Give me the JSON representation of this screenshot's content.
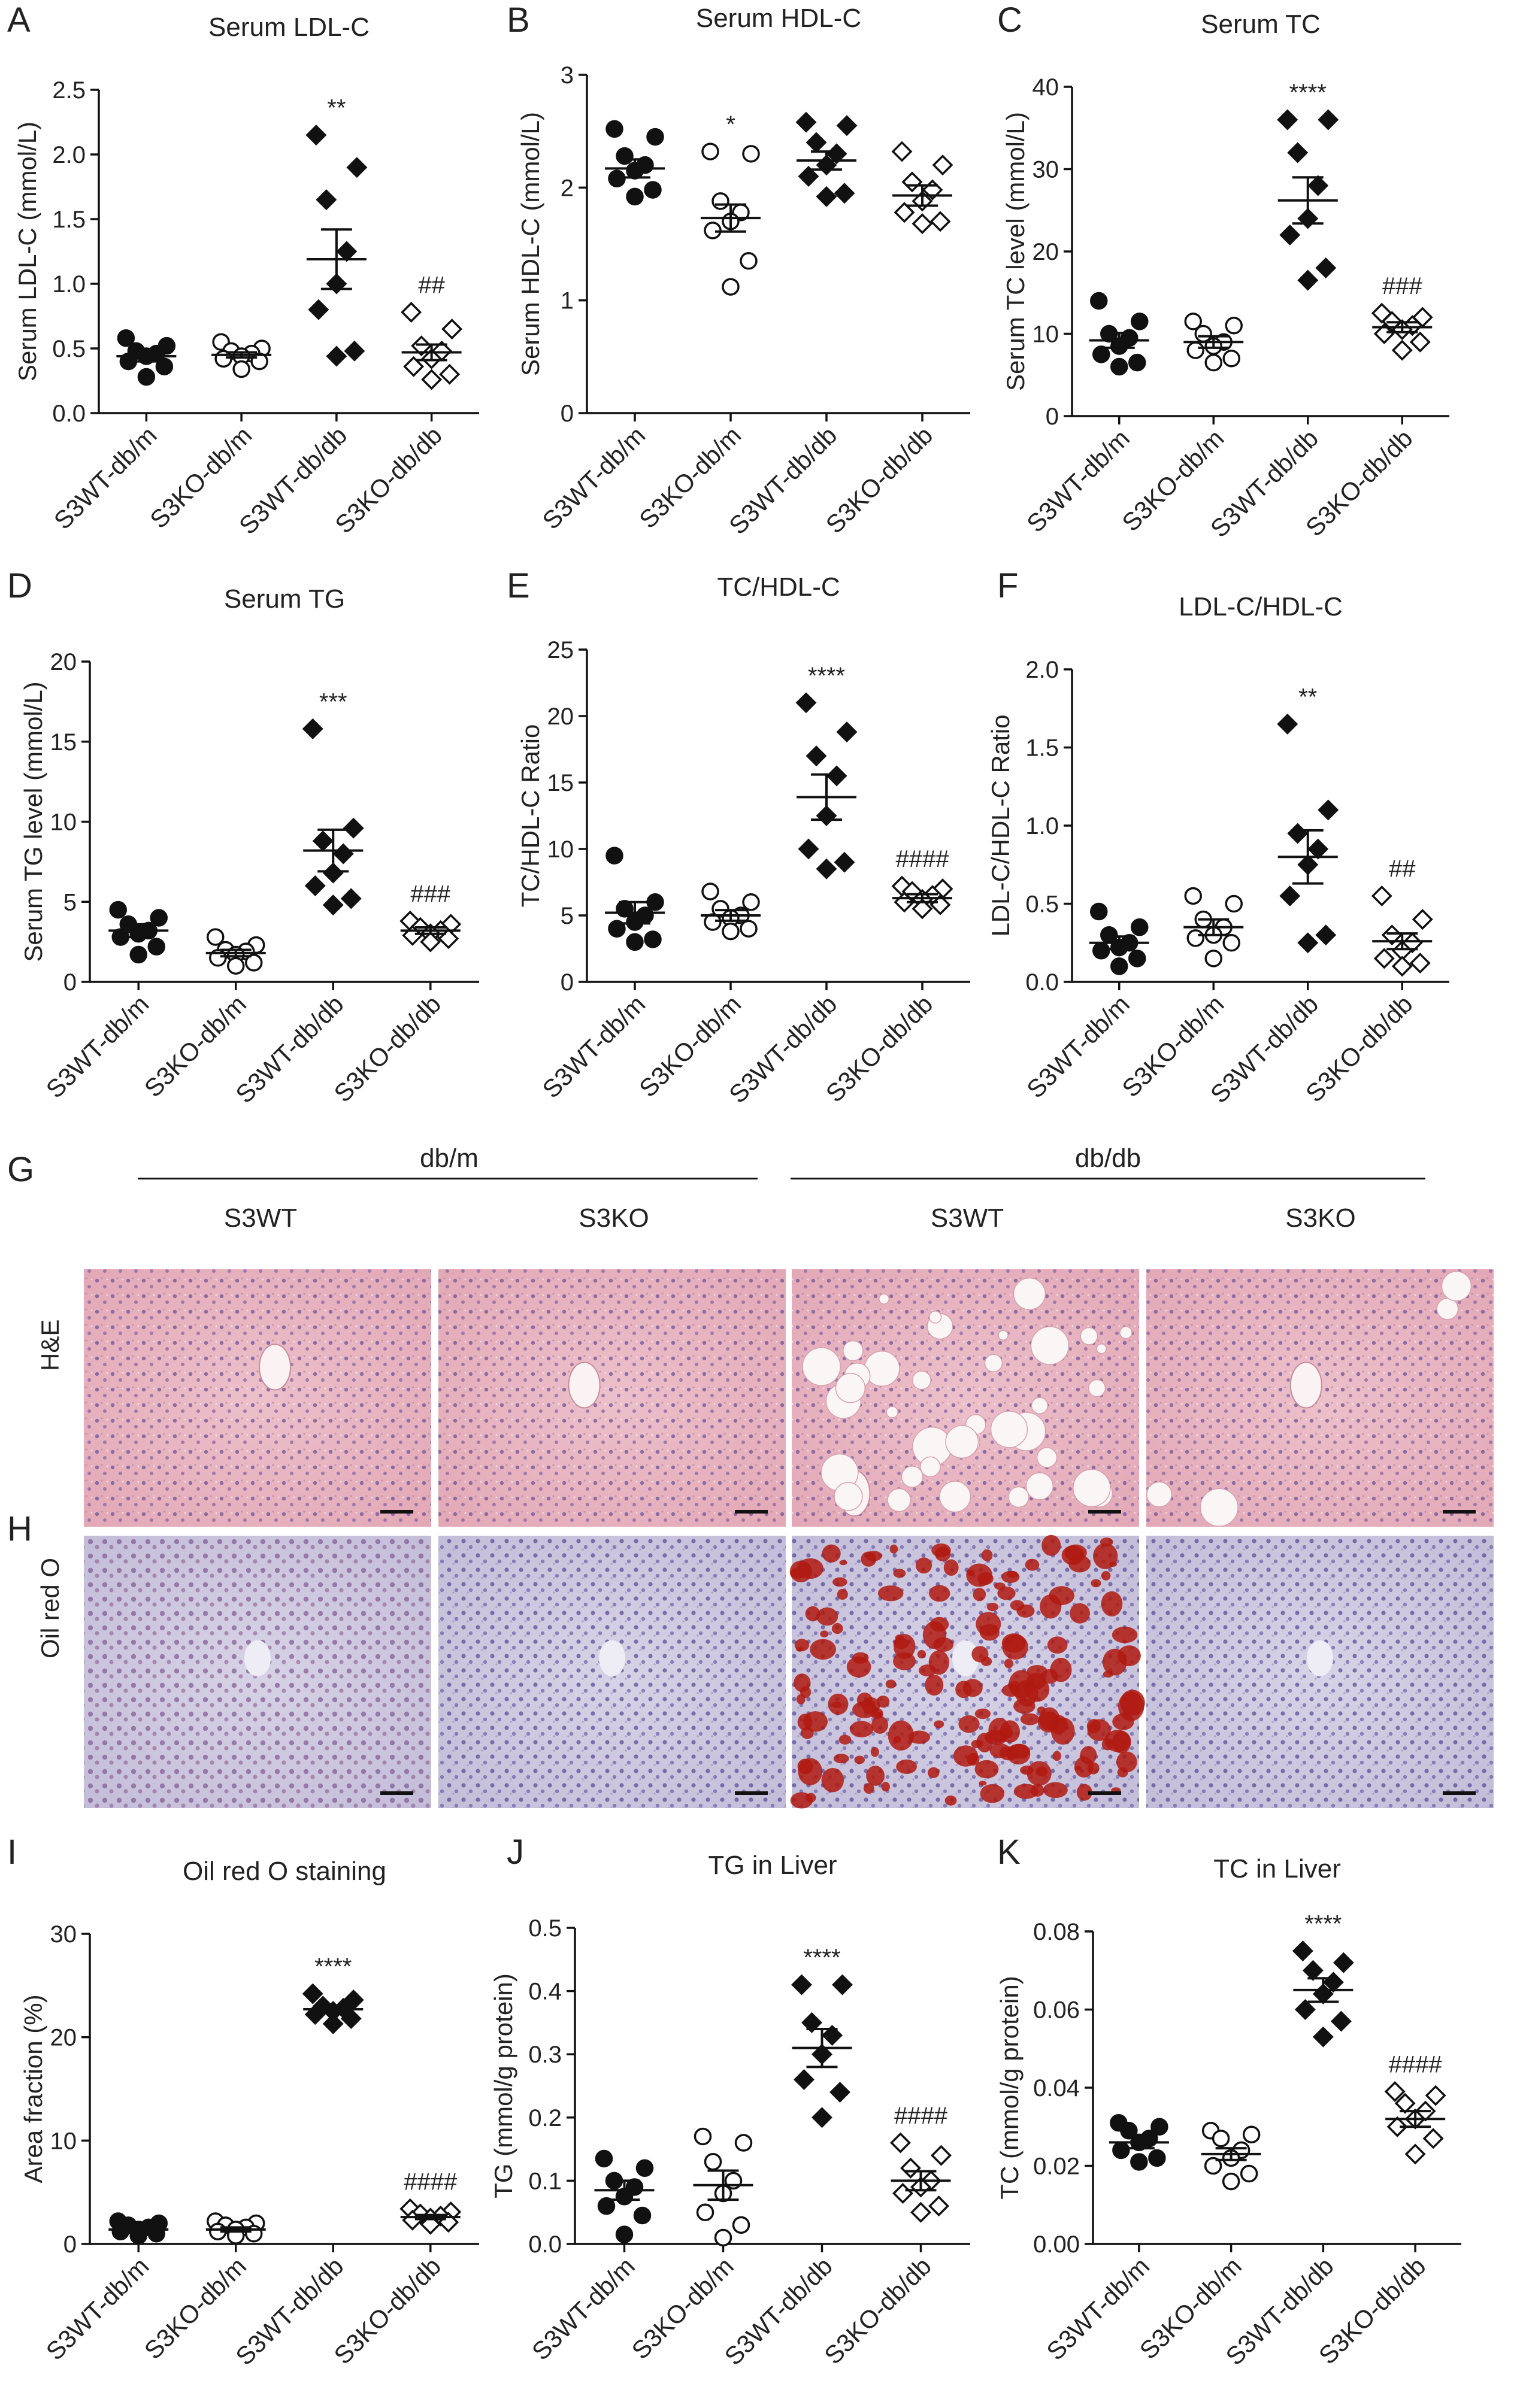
{
  "figure": {
    "panel_letters": [
      "A",
      "B",
      "C",
      "D",
      "E",
      "F",
      "G",
      "H",
      "I",
      "J",
      "K"
    ],
    "histology": {
      "group_headers": [
        "db/m",
        "db/db"
      ],
      "subheaders": [
        "S3WT",
        "S3KO",
        "S3WT",
        "S3KO"
      ],
      "row_labels": [
        "H&E",
        "Oil red O"
      ]
    }
  },
  "colors": {
    "ink": "#111111",
    "he_stain": "#e7b1bd",
    "he_nuclei": "#7a5f9e",
    "oro_background": "#cfcbe0",
    "oro_lipid": "#b01a10"
  },
  "chart_data": [
    {
      "id": "A",
      "type": "scatter",
      "title": "Serum  LDL-C",
      "ylabel": "Serum LDL-C  (mmol/L)",
      "ylim": [
        0,
        2.5
      ],
      "yticks": [
        0.0,
        0.5,
        1.0,
        1.5,
        2.0,
        2.5
      ],
      "tick_decimals": 1,
      "categories": [
        "S3WT-db/m",
        "S3KO-db/m",
        "S3WT-db/db",
        "S3KO-db/db"
      ],
      "series": [
        {
          "category": "S3WT-db/m",
          "marker": "filled-circle",
          "mean": 0.44,
          "sem": 0.04,
          "values": [
            0.58,
            0.52,
            0.48,
            0.46,
            0.44,
            0.4,
            0.36,
            0.28
          ],
          "annotation": ""
        },
        {
          "category": "S3KO-db/m",
          "marker": "open-circle",
          "mean": 0.45,
          "sem": 0.02,
          "values": [
            0.55,
            0.5,
            0.48,
            0.46,
            0.44,
            0.42,
            0.4,
            0.34
          ],
          "annotation": ""
        },
        {
          "category": "S3WT-db/db",
          "marker": "filled-diamond",
          "mean": 1.19,
          "sem": 0.23,
          "values": [
            2.15,
            1.9,
            1.65,
            1.25,
            1.0,
            0.8,
            0.48,
            0.44
          ],
          "annotation": "**"
        },
        {
          "category": "S3KO-db/db",
          "marker": "open-diamond",
          "mean": 0.47,
          "sem": 0.06,
          "values": [
            0.78,
            0.65,
            0.52,
            0.48,
            0.42,
            0.36,
            0.3,
            0.26
          ],
          "annotation": "##"
        }
      ]
    },
    {
      "id": "B",
      "type": "scatter",
      "title": "Serum HDL-C",
      "ylabel": "Serum HDL-C  (mmol/L)",
      "ylim": [
        0,
        3
      ],
      "yticks": [
        0,
        1,
        2,
        3
      ],
      "tick_decimals": 0,
      "categories": [
        "S3WT-db/m",
        "S3KO-db/m",
        "S3WT-db/db",
        "S3KO-db/db"
      ],
      "series": [
        {
          "category": "S3WT-db/m",
          "marker": "filled-circle",
          "mean": 2.17,
          "sem": 0.08,
          "values": [
            2.52,
            2.45,
            2.28,
            2.2,
            2.15,
            2.08,
            1.98,
            1.92
          ],
          "annotation": ""
        },
        {
          "category": "S3KO-db/m",
          "marker": "open-circle",
          "mean": 1.73,
          "sem": 0.12,
          "values": [
            2.32,
            2.3,
            1.88,
            1.78,
            1.7,
            1.62,
            1.35,
            1.12
          ],
          "annotation": "*"
        },
        {
          "category": "S3WT-db/db",
          "marker": "filled-diamond",
          "mean": 2.24,
          "sem": 0.08,
          "values": [
            2.58,
            2.55,
            2.4,
            2.3,
            2.2,
            2.1,
            1.95,
            1.92
          ],
          "annotation": ""
        },
        {
          "category": "S3KO-db/db",
          "marker": "open-diamond",
          "mean": 1.93,
          "sem": 0.09,
          "values": [
            2.32,
            2.2,
            2.05,
            1.98,
            1.88,
            1.78,
            1.7,
            1.68
          ],
          "annotation": ""
        }
      ]
    },
    {
      "id": "C",
      "type": "scatter",
      "title": "Serum TC",
      "ylabel": "Serum TC level (mmol/L)",
      "ylim": [
        0,
        40
      ],
      "yticks": [
        0,
        10,
        20,
        30,
        40
      ],
      "tick_decimals": 0,
      "categories": [
        "S3WT-db/m",
        "S3KO-db/m",
        "S3WT-db/db",
        "S3KO-db/db"
      ],
      "series": [
        {
          "category": "S3WT-db/m",
          "marker": "filled-circle",
          "mean": 9.2,
          "sem": 0.9,
          "values": [
            14.0,
            11.5,
            10.0,
            9.5,
            8.5,
            7.5,
            6.5,
            6.0
          ],
          "annotation": ""
        },
        {
          "category": "S3KO-db/m",
          "marker": "open-circle",
          "mean": 9.0,
          "sem": 0.7,
          "values": [
            11.5,
            11.0,
            10.0,
            9.0,
            8.5,
            8.0,
            7.0,
            6.5
          ],
          "annotation": ""
        },
        {
          "category": "S3WT-db/db",
          "marker": "filled-diamond",
          "mean": 26.2,
          "sem": 2.8,
          "values": [
            36.0,
            36.0,
            32.0,
            28.0,
            24.0,
            22.0,
            18.0,
            16.5
          ],
          "annotation": "****"
        },
        {
          "category": "S3KO-db/db",
          "marker": "open-diamond",
          "mean": 10.8,
          "sem": 0.6,
          "values": [
            12.5,
            12.0,
            11.5,
            11.0,
            10.5,
            10.0,
            9.0,
            8.0
          ],
          "annotation": "###"
        }
      ]
    },
    {
      "id": "D",
      "type": "scatter",
      "title": "Serum TG",
      "ylabel": "Serum TG level (mmol/L)",
      "ylim": [
        0,
        20
      ],
      "yticks": [
        0,
        5,
        10,
        15,
        20
      ],
      "tick_decimals": 0,
      "categories": [
        "S3WT-db/m",
        "S3KO-db/m",
        "S3WT-db/db",
        "S3KO-db/db"
      ],
      "series": [
        {
          "category": "S3WT-db/m",
          "marker": "filled-circle",
          "mean": 3.2,
          "sem": 0.4,
          "values": [
            4.5,
            4.0,
            3.6,
            3.2,
            3.0,
            2.8,
            2.2,
            1.7
          ],
          "annotation": ""
        },
        {
          "category": "S3KO-db/m",
          "marker": "open-circle",
          "mean": 1.8,
          "sem": 0.2,
          "values": [
            2.8,
            2.3,
            2.0,
            1.9,
            1.7,
            1.5,
            1.2,
            1.0
          ],
          "annotation": ""
        },
        {
          "category": "S3WT-db/db",
          "marker": "filled-diamond",
          "mean": 8.2,
          "sem": 1.3,
          "values": [
            15.8,
            9.6,
            8.8,
            8.0,
            6.8,
            6.0,
            5.2,
            4.8
          ],
          "annotation": "***"
        },
        {
          "category": "S3KO-db/db",
          "marker": "open-diamond",
          "mean": 3.2,
          "sem": 0.2,
          "values": [
            3.8,
            3.6,
            3.4,
            3.2,
            3.0,
            2.9,
            2.7,
            2.5
          ],
          "annotation": "###"
        }
      ]
    },
    {
      "id": "E",
      "type": "scatter",
      "title": "TC/HDL-C",
      "ylabel": "TC/HDL-C Ratio",
      "ylim": [
        0,
        25
      ],
      "yticks": [
        0,
        5,
        10,
        15,
        20,
        25
      ],
      "tick_decimals": 0,
      "categories": [
        "S3WT-db/m",
        "S3KO-db/m",
        "S3WT-db/db",
        "S3KO-db/db"
      ],
      "series": [
        {
          "category": "S3WT-db/m",
          "marker": "filled-circle",
          "mean": 5.2,
          "sem": 0.8,
          "values": [
            9.5,
            6.0,
            5.5,
            5.0,
            4.5,
            4.0,
            3.2,
            3.0
          ],
          "annotation": ""
        },
        {
          "category": "S3KO-db/m",
          "marker": "open-circle",
          "mean": 5.0,
          "sem": 0.4,
          "values": [
            6.8,
            6.0,
            5.5,
            5.0,
            4.8,
            4.5,
            4.0,
            3.8
          ],
          "annotation": ""
        },
        {
          "category": "S3WT-db/db",
          "marker": "filled-diamond",
          "mean": 13.9,
          "sem": 1.7,
          "values": [
            21.0,
            18.8,
            17.0,
            15.5,
            12.5,
            10.0,
            9.0,
            8.5
          ],
          "annotation": "****"
        },
        {
          "category": "S3KO-db/db",
          "marker": "open-diamond",
          "mean": 6.3,
          "sem": 0.3,
          "values": [
            7.2,
            7.0,
            6.8,
            6.5,
            6.2,
            6.0,
            5.8,
            5.5
          ],
          "annotation": "####"
        }
      ]
    },
    {
      "id": "F",
      "type": "scatter",
      "title": "LDL-C/HDL-C",
      "ylabel": "LDL-C/HDL-C Ratio",
      "ylim": [
        0,
        2.0
      ],
      "yticks": [
        0.0,
        0.5,
        1.0,
        1.5,
        2.0
      ],
      "tick_decimals": 1,
      "categories": [
        "S3WT-db/m",
        "S3KO-db/m",
        "S3WT-db/db",
        "S3KO-db/db"
      ],
      "series": [
        {
          "category": "S3WT-db/m",
          "marker": "filled-circle",
          "mean": 0.25,
          "sem": 0.04,
          "values": [
            0.45,
            0.35,
            0.3,
            0.25,
            0.22,
            0.2,
            0.15,
            0.1
          ],
          "annotation": ""
        },
        {
          "category": "S3KO-db/m",
          "marker": "open-circle",
          "mean": 0.35,
          "sem": 0.05,
          "values": [
            0.55,
            0.5,
            0.4,
            0.35,
            0.3,
            0.28,
            0.25,
            0.15
          ],
          "annotation": ""
        },
        {
          "category": "S3WT-db/db",
          "marker": "filled-diamond",
          "mean": 0.8,
          "sem": 0.17,
          "values": [
            1.65,
            1.1,
            0.95,
            0.85,
            0.75,
            0.55,
            0.3,
            0.25
          ],
          "annotation": "**"
        },
        {
          "category": "S3KO-db/db",
          "marker": "open-diamond",
          "mean": 0.26,
          "sem": 0.05,
          "values": [
            0.55,
            0.4,
            0.3,
            0.25,
            0.2,
            0.15,
            0.12,
            0.1
          ],
          "annotation": "##"
        }
      ]
    },
    {
      "id": "I",
      "type": "scatter",
      "title": "Oil red O staining",
      "ylabel": "Area fraction (%)",
      "ylim": [
        0,
        30
      ],
      "yticks": [
        0,
        10,
        20,
        30
      ],
      "tick_decimals": 0,
      "categories": [
        "S3WT-db/m",
        "S3KO-db/m",
        "S3WT-db/db",
        "S3KO-db/db"
      ],
      "series": [
        {
          "category": "S3WT-db/m",
          "marker": "filled-circle",
          "mean": 1.4,
          "sem": 0.2,
          "values": [
            2.2,
            2.0,
            1.8,
            1.6,
            1.4,
            1.2,
            1.0,
            0.8
          ],
          "annotation": ""
        },
        {
          "category": "S3KO-db/m",
          "marker": "open-circle",
          "mean": 1.4,
          "sem": 0.2,
          "values": [
            2.2,
            2.0,
            1.8,
            1.6,
            1.4,
            1.2,
            1.0,
            0.8
          ],
          "annotation": ""
        },
        {
          "category": "S3WT-db/db",
          "marker": "filled-diamond",
          "mean": 22.7,
          "sem": 0.3,
          "values": [
            24.2,
            23.6,
            23.0,
            22.8,
            22.5,
            22.2,
            21.8,
            21.3
          ],
          "annotation": "****"
        },
        {
          "category": "S3KO-db/db",
          "marker": "open-diamond",
          "mean": 2.6,
          "sem": 0.2,
          "values": [
            3.4,
            3.1,
            2.9,
            2.7,
            2.5,
            2.3,
            2.1,
            1.9
          ],
          "annotation": "####"
        }
      ]
    },
    {
      "id": "J",
      "type": "scatter",
      "title": "TG in Liver",
      "ylabel": "TG (mmol/g protein)",
      "ylim": [
        0,
        0.5
      ],
      "yticks": [
        0.0,
        0.1,
        0.2,
        0.3,
        0.4,
        0.5
      ],
      "tick_decimals": 1,
      "categories": [
        "S3WT-db/m",
        "S3KO-db/m",
        "S3WT-db/db",
        "S3KO-db/db"
      ],
      "series": [
        {
          "category": "S3WT-db/m",
          "marker": "filled-circle",
          "mean": 0.085,
          "sem": 0.015,
          "values": [
            0.135,
            0.12,
            0.1,
            0.09,
            0.075,
            0.06,
            0.045,
            0.015
          ],
          "annotation": ""
        },
        {
          "category": "S3KO-db/m",
          "marker": "open-circle",
          "mean": 0.093,
          "sem": 0.023,
          "values": [
            0.17,
            0.16,
            0.13,
            0.1,
            0.08,
            0.05,
            0.03,
            0.01
          ],
          "annotation": ""
        },
        {
          "category": "S3WT-db/db",
          "marker": "filled-diamond",
          "mean": 0.31,
          "sem": 0.03,
          "values": [
            0.41,
            0.41,
            0.35,
            0.33,
            0.3,
            0.26,
            0.24,
            0.2
          ],
          "annotation": "****"
        },
        {
          "category": "S3KO-db/db",
          "marker": "open-diamond",
          "mean": 0.1,
          "sem": 0.015,
          "values": [
            0.16,
            0.14,
            0.12,
            0.1,
            0.09,
            0.08,
            0.06,
            0.05
          ],
          "annotation": "####"
        }
      ]
    },
    {
      "id": "K",
      "type": "scatter",
      "title": "TC in Liver",
      "ylabel": "TC (mmol/g protein)",
      "ylim": [
        0,
        0.08
      ],
      "yticks": [
        0.0,
        0.02,
        0.04,
        0.06,
        0.08
      ],
      "tick_decimals": 2,
      "categories": [
        "S3WT-db/m",
        "S3KO-db/m",
        "S3WT-db/db",
        "S3KO-db/db"
      ],
      "series": [
        {
          "category": "S3WT-db/m",
          "marker": "filled-circle",
          "mean": 0.026,
          "sem": 0.0015,
          "values": [
            0.031,
            0.03,
            0.029,
            0.027,
            0.026,
            0.024,
            0.022,
            0.021
          ],
          "annotation": ""
        },
        {
          "category": "S3KO-db/m",
          "marker": "open-circle",
          "mean": 0.023,
          "sem": 0.0015,
          "values": [
            0.029,
            0.028,
            0.027,
            0.024,
            0.022,
            0.02,
            0.018,
            0.016
          ],
          "annotation": ""
        },
        {
          "category": "S3WT-db/db",
          "marker": "filled-diamond",
          "mean": 0.065,
          "sem": 0.003,
          "values": [
            0.075,
            0.072,
            0.07,
            0.067,
            0.064,
            0.06,
            0.057,
            0.053
          ],
          "annotation": "****"
        },
        {
          "category": "S3KO-db/db",
          "marker": "open-diamond",
          "mean": 0.032,
          "sem": 0.002,
          "values": [
            0.039,
            0.038,
            0.036,
            0.034,
            0.032,
            0.03,
            0.027,
            0.023
          ],
          "annotation": "####"
        }
      ]
    }
  ]
}
